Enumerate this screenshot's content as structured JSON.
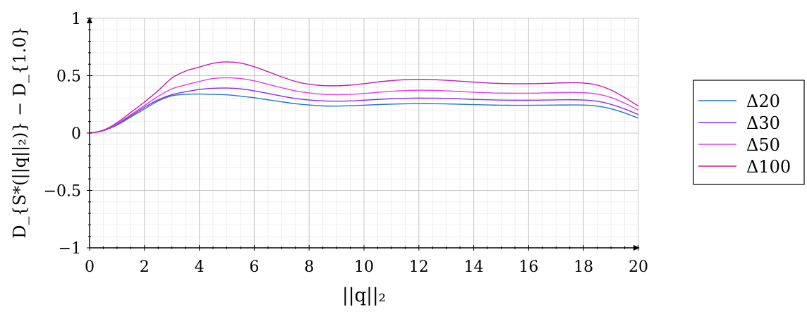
{
  "chart_data": {
    "type": "line",
    "xlabel": "||q||₂",
    "ylabel": "D_{S*(||q||₂)} − D_{1.0}",
    "xlim": [
      0,
      20
    ],
    "ylim": [
      -1,
      1
    ],
    "x_ticks": [
      "0",
      "2",
      "4",
      "6",
      "8",
      "10",
      "12",
      "14",
      "16",
      "18",
      "20"
    ],
    "y_ticks": [
      "1",
      "0.5",
      "0",
      "−0.5",
      "−1"
    ],
    "grid": true,
    "legend_position": "right",
    "series": [
      {
        "name": "Δ20",
        "color": "#1f77c8",
        "points": [
          [
            0,
            0
          ],
          [
            0.5,
            0.02
          ],
          [
            1,
            0.07
          ],
          [
            1.5,
            0.14
          ],
          [
            2,
            0.21
          ],
          [
            2.5,
            0.28
          ],
          [
            3,
            0.325
          ],
          [
            3.5,
            0.337
          ],
          [
            4,
            0.34
          ],
          [
            4.5,
            0.337
          ],
          [
            5,
            0.333
          ],
          [
            5.5,
            0.322
          ],
          [
            6,
            0.308
          ],
          [
            6.5,
            0.29
          ],
          [
            7,
            0.272
          ],
          [
            7.5,
            0.256
          ],
          [
            8,
            0.245
          ],
          [
            8.5,
            0.237
          ],
          [
            9,
            0.235
          ],
          [
            9.5,
            0.238
          ],
          [
            10,
            0.243
          ],
          [
            10.5,
            0.248
          ],
          [
            11,
            0.252
          ],
          [
            11.5,
            0.255
          ],
          [
            12,
            0.256
          ],
          [
            12.5,
            0.256
          ],
          [
            13,
            0.254
          ],
          [
            13.5,
            0.251
          ],
          [
            14,
            0.248
          ],
          [
            14.5,
            0.245
          ],
          [
            15,
            0.243
          ],
          [
            15.5,
            0.242
          ],
          [
            16,
            0.242
          ],
          [
            16.5,
            0.243
          ],
          [
            17,
            0.244
          ],
          [
            17.5,
            0.245
          ],
          [
            18,
            0.244
          ],
          [
            18.5,
            0.235
          ],
          [
            19,
            0.212
          ],
          [
            19.5,
            0.175
          ],
          [
            20,
            0.13
          ]
        ]
      },
      {
        "name": "Δ30",
        "color": "#8e2be0",
        "points": [
          [
            0,
            0
          ],
          [
            0.5,
            0.02
          ],
          [
            1,
            0.075
          ],
          [
            1.5,
            0.15
          ],
          [
            2,
            0.225
          ],
          [
            2.5,
            0.29
          ],
          [
            3,
            0.335
          ],
          [
            3.5,
            0.36
          ],
          [
            4,
            0.38
          ],
          [
            4.5,
            0.39
          ],
          [
            5,
            0.392
          ],
          [
            5.5,
            0.385
          ],
          [
            6,
            0.368
          ],
          [
            6.5,
            0.345
          ],
          [
            7,
            0.322
          ],
          [
            7.5,
            0.302
          ],
          [
            8,
            0.288
          ],
          [
            8.5,
            0.28
          ],
          [
            9,
            0.278
          ],
          [
            9.5,
            0.28
          ],
          [
            10,
            0.286
          ],
          [
            10.5,
            0.293
          ],
          [
            11,
            0.299
          ],
          [
            11.5,
            0.303
          ],
          [
            12,
            0.305
          ],
          [
            12.5,
            0.304
          ],
          [
            13,
            0.302
          ],
          [
            13.5,
            0.298
          ],
          [
            14,
            0.293
          ],
          [
            14.5,
            0.29
          ],
          [
            15,
            0.287
          ],
          [
            15.5,
            0.286
          ],
          [
            16,
            0.286
          ],
          [
            16.5,
            0.287
          ],
          [
            17,
            0.289
          ],
          [
            17.5,
            0.29
          ],
          [
            18,
            0.288
          ],
          [
            18.5,
            0.277
          ],
          [
            19,
            0.25
          ],
          [
            19.5,
            0.21
          ],
          [
            20,
            0.16
          ]
        ]
      },
      {
        "name": "Δ50",
        "color": "#e040e0",
        "points": [
          [
            0,
            0
          ],
          [
            0.5,
            0.022
          ],
          [
            1,
            0.08
          ],
          [
            1.5,
            0.16
          ],
          [
            2,
            0.24
          ],
          [
            2.5,
            0.32
          ],
          [
            3,
            0.385
          ],
          [
            3.5,
            0.42
          ],
          [
            4,
            0.45
          ],
          [
            4.5,
            0.475
          ],
          [
            5,
            0.482
          ],
          [
            5.5,
            0.475
          ],
          [
            6,
            0.455
          ],
          [
            6.5,
            0.425
          ],
          [
            7,
            0.395
          ],
          [
            7.5,
            0.368
          ],
          [
            8,
            0.35
          ],
          [
            8.5,
            0.338
          ],
          [
            9,
            0.335
          ],
          [
            9.5,
            0.337
          ],
          [
            10,
            0.345
          ],
          [
            10.5,
            0.355
          ],
          [
            11,
            0.364
          ],
          [
            11.5,
            0.37
          ],
          [
            12,
            0.373
          ],
          [
            12.5,
            0.372
          ],
          [
            13,
            0.368
          ],
          [
            13.5,
            0.362
          ],
          [
            14,
            0.356
          ],
          [
            14.5,
            0.351
          ],
          [
            15,
            0.348
          ],
          [
            15.5,
            0.347
          ],
          [
            16,
            0.347
          ],
          [
            16.5,
            0.349
          ],
          [
            17,
            0.352
          ],
          [
            17.5,
            0.354
          ],
          [
            18,
            0.352
          ],
          [
            18.5,
            0.34
          ],
          [
            19,
            0.31
          ],
          [
            19.5,
            0.26
          ],
          [
            20,
            0.2
          ]
        ]
      },
      {
        "name": "Δ100",
        "color": "#c41cae",
        "points": [
          [
            0,
            0
          ],
          [
            0.5,
            0.025
          ],
          [
            1,
            0.09
          ],
          [
            1.5,
            0.18
          ],
          [
            2,
            0.27
          ],
          [
            2.5,
            0.37
          ],
          [
            3,
            0.48
          ],
          [
            3.5,
            0.54
          ],
          [
            4,
            0.575
          ],
          [
            4.5,
            0.608
          ],
          [
            5,
            0.62
          ],
          [
            5.5,
            0.61
          ],
          [
            6,
            0.578
          ],
          [
            6.5,
            0.535
          ],
          [
            7,
            0.49
          ],
          [
            7.5,
            0.45
          ],
          [
            8,
            0.425
          ],
          [
            8.5,
            0.414
          ],
          [
            9,
            0.412
          ],
          [
            9.5,
            0.418
          ],
          [
            10,
            0.43
          ],
          [
            10.5,
            0.445
          ],
          [
            11,
            0.457
          ],
          [
            11.5,
            0.465
          ],
          [
            12,
            0.468
          ],
          [
            12.5,
            0.466
          ],
          [
            13,
            0.46
          ],
          [
            13.5,
            0.452
          ],
          [
            14,
            0.444
          ],
          [
            14.5,
            0.437
          ],
          [
            15,
            0.432
          ],
          [
            15.5,
            0.43
          ],
          [
            16,
            0.43
          ],
          [
            16.5,
            0.432
          ],
          [
            17,
            0.436
          ],
          [
            17.5,
            0.439
          ],
          [
            18,
            0.436
          ],
          [
            18.5,
            0.418
          ],
          [
            19,
            0.375
          ],
          [
            19.5,
            0.31
          ],
          [
            20,
            0.235
          ]
        ]
      }
    ]
  }
}
